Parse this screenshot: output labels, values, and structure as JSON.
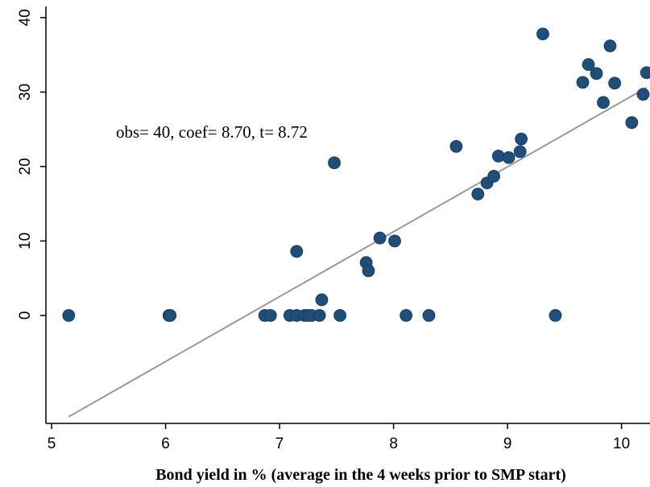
{
  "chart_data": {
    "type": "scatter",
    "title": "",
    "xlabel": "Bond yield in % (average in the 4 weeks prior to SMP start)",
    "ylabel": "",
    "xlim": [
      4.95,
      10.25
    ],
    "ylim": [
      -14.5,
      41.5
    ],
    "x_ticks": [
      "5",
      "6",
      "7",
      "8",
      "9",
      "10"
    ],
    "y_ticks": [
      "0",
      "10",
      "20",
      "30",
      "40"
    ],
    "annotation": "obs= 40, coef= 8.70, t= 8.72",
    "fit_line": {
      "x": [
        5.15,
        10.22
      ],
      "y": [
        -13.6,
        30.6
      ]
    },
    "grid": false,
    "colors": {
      "marker": "#1f4e79",
      "fit_line": "#9a9a9a",
      "axis": "#000000"
    },
    "points": [
      {
        "x": 5.15,
        "y": 0
      },
      {
        "x": 6.03,
        "y": 0
      },
      {
        "x": 6.04,
        "y": 0
      },
      {
        "x": 6.87,
        "y": 0
      },
      {
        "x": 6.92,
        "y": 0
      },
      {
        "x": 7.09,
        "y": 0
      },
      {
        "x": 7.15,
        "y": 0
      },
      {
        "x": 7.22,
        "y": 0
      },
      {
        "x": 7.25,
        "y": 0
      },
      {
        "x": 7.28,
        "y": 0
      },
      {
        "x": 7.35,
        "y": 0
      },
      {
        "x": 7.53,
        "y": 0
      },
      {
        "x": 8.11,
        "y": 0
      },
      {
        "x": 8.31,
        "y": 0
      },
      {
        "x": 9.42,
        "y": 0
      },
      {
        "x": 7.15,
        "y": 8.6
      },
      {
        "x": 7.37,
        "y": 2.1
      },
      {
        "x": 7.48,
        "y": 20.5
      },
      {
        "x": 7.76,
        "y": 7.1
      },
      {
        "x": 7.78,
        "y": 6.0
      },
      {
        "x": 7.88,
        "y": 10.4
      },
      {
        "x": 8.01,
        "y": 10.0
      },
      {
        "x": 8.55,
        "y": 22.7
      },
      {
        "x": 8.74,
        "y": 16.3
      },
      {
        "x": 8.82,
        "y": 17.8
      },
      {
        "x": 8.88,
        "y": 18.7
      },
      {
        "x": 8.92,
        "y": 21.4
      },
      {
        "x": 9.01,
        "y": 21.2
      },
      {
        "x": 9.11,
        "y": 22.0
      },
      {
        "x": 9.12,
        "y": 23.7
      },
      {
        "x": 9.31,
        "y": 37.8
      },
      {
        "x": 9.66,
        "y": 31.3
      },
      {
        "x": 9.71,
        "y": 33.7
      },
      {
        "x": 9.78,
        "y": 32.5
      },
      {
        "x": 9.84,
        "y": 28.6
      },
      {
        "x": 9.9,
        "y": 36.2
      },
      {
        "x": 9.94,
        "y": 31.2
      },
      {
        "x": 10.09,
        "y": 25.9
      },
      {
        "x": 10.19,
        "y": 29.7
      },
      {
        "x": 10.22,
        "y": 32.6
      }
    ]
  }
}
